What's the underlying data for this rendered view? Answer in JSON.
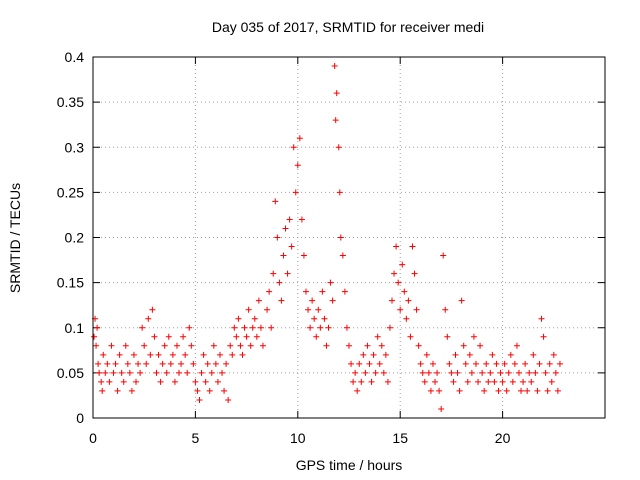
{
  "chart_data": {
    "type": "scatter",
    "title": "Day 035 of 2017, SRMTID for receiver medi",
    "xlabel": "GPS time / hours",
    "ylabel": "SRMTID / TECUs",
    "xlim": [
      0,
      25
    ],
    "ylim": [
      0,
      0.4
    ],
    "xticks": [
      0,
      5,
      10,
      15,
      20
    ],
    "xtick_labels": [
      "0",
      "5",
      "10",
      "15",
      "20"
    ],
    "yticks": [
      0,
      0.05,
      0.1,
      0.15,
      0.2,
      0.25,
      0.3,
      0.35,
      0.4
    ],
    "ytick_labels": [
      "0",
      "0.05",
      "0.1",
      "0.15",
      "0.2",
      "0.25",
      "0.3",
      "0.35",
      "0.4"
    ],
    "grid": true,
    "marker": "+",
    "color": "#ff0000",
    "series": [
      {
        "name": "SRMTID",
        "points": [
          [
            0.05,
            0.09
          ],
          [
            0.1,
            0.11
          ],
          [
            0.15,
            0.08
          ],
          [
            0.2,
            0.1
          ],
          [
            0.25,
            0.06
          ],
          [
            0.3,
            0.05
          ],
          [
            0.4,
            0.04
          ],
          [
            0.45,
            0.03
          ],
          [
            0.5,
            0.07
          ],
          [
            0.6,
            0.05
          ],
          [
            0.7,
            0.06
          ],
          [
            0.8,
            0.04
          ],
          [
            0.9,
            0.08
          ],
          [
            1.0,
            0.05
          ],
          [
            1.1,
            0.06
          ],
          [
            1.2,
            0.03
          ],
          [
            1.3,
            0.07
          ],
          [
            1.4,
            0.05
          ],
          [
            1.5,
            0.04
          ],
          [
            1.6,
            0.08
          ],
          [
            1.7,
            0.06
          ],
          [
            1.8,
            0.05
          ],
          [
            1.9,
            0.03
          ],
          [
            2.0,
            0.07
          ],
          [
            2.1,
            0.04
          ],
          [
            2.2,
            0.06
          ],
          [
            2.3,
            0.05
          ],
          [
            2.4,
            0.1
          ],
          [
            2.5,
            0.08
          ],
          [
            2.6,
            0.06
          ],
          [
            2.7,
            0.11
          ],
          [
            2.8,
            0.07
          ],
          [
            2.9,
            0.12
          ],
          [
            3.0,
            0.09
          ],
          [
            3.1,
            0.05
          ],
          [
            3.2,
            0.07
          ],
          [
            3.3,
            0.04
          ],
          [
            3.4,
            0.06
          ],
          [
            3.5,
            0.08
          ],
          [
            3.6,
            0.05
          ],
          [
            3.7,
            0.09
          ],
          [
            3.8,
            0.06
          ],
          [
            3.9,
            0.07
          ],
          [
            4.0,
            0.04
          ],
          [
            4.1,
            0.08
          ],
          [
            4.2,
            0.05
          ],
          [
            4.3,
            0.06
          ],
          [
            4.4,
            0.09
          ],
          [
            4.5,
            0.07
          ],
          [
            4.6,
            0.05
          ],
          [
            4.7,
            0.1
          ],
          [
            4.8,
            0.08
          ],
          [
            4.9,
            0.06
          ],
          [
            5.0,
            0.04
          ],
          [
            5.1,
            0.03
          ],
          [
            5.2,
            0.02
          ],
          [
            5.3,
            0.05
          ],
          [
            5.4,
            0.07
          ],
          [
            5.5,
            0.04
          ],
          [
            5.6,
            0.06
          ],
          [
            5.7,
            0.03
          ],
          [
            5.8,
            0.05
          ],
          [
            5.9,
            0.08
          ],
          [
            6.0,
            0.06
          ],
          [
            6.1,
            0.04
          ],
          [
            6.2,
            0.07
          ],
          [
            6.3,
            0.05
          ],
          [
            6.4,
            0.03
          ],
          [
            6.5,
            0.06
          ],
          [
            6.6,
            0.02
          ],
          [
            6.7,
            0.08
          ],
          [
            6.8,
            0.07
          ],
          [
            6.9,
            0.1
          ],
          [
            7.0,
            0.09
          ],
          [
            7.1,
            0.11
          ],
          [
            7.2,
            0.08
          ],
          [
            7.3,
            0.07
          ],
          [
            7.4,
            0.1
          ],
          [
            7.5,
            0.09
          ],
          [
            7.6,
            0.12
          ],
          [
            7.7,
            0.08
          ],
          [
            7.8,
            0.1
          ],
          [
            7.9,
            0.11
          ],
          [
            8.0,
            0.09
          ],
          [
            8.1,
            0.13
          ],
          [
            8.2,
            0.1
          ],
          [
            8.3,
            0.08
          ],
          [
            8.5,
            0.12
          ],
          [
            8.6,
            0.14
          ],
          [
            8.7,
            0.1
          ],
          [
            8.8,
            0.16
          ],
          [
            8.9,
            0.24
          ],
          [
            9.0,
            0.2
          ],
          [
            9.1,
            0.15
          ],
          [
            9.2,
            0.13
          ],
          [
            9.3,
            0.18
          ],
          [
            9.4,
            0.21
          ],
          [
            9.5,
            0.16
          ],
          [
            9.6,
            0.22
          ],
          [
            9.7,
            0.19
          ],
          [
            9.8,
            0.3
          ],
          [
            9.9,
            0.25
          ],
          [
            10.0,
            0.28
          ],
          [
            10.1,
            0.31
          ],
          [
            10.2,
            0.22
          ],
          [
            10.3,
            0.18
          ],
          [
            10.4,
            0.14
          ],
          [
            10.5,
            0.12
          ],
          [
            10.6,
            0.1
          ],
          [
            10.7,
            0.13
          ],
          [
            10.8,
            0.11
          ],
          [
            10.9,
            0.09
          ],
          [
            11.0,
            0.12
          ],
          [
            11.1,
            0.1
          ],
          [
            11.2,
            0.14
          ],
          [
            11.3,
            0.11
          ],
          [
            11.4,
            0.08
          ],
          [
            11.5,
            0.1
          ],
          [
            11.6,
            0.15
          ],
          [
            11.7,
            0.13
          ],
          [
            11.8,
            0.39
          ],
          [
            11.85,
            0.33
          ],
          [
            11.9,
            0.36
          ],
          [
            12.0,
            0.3
          ],
          [
            12.05,
            0.25
          ],
          [
            12.1,
            0.2
          ],
          [
            12.2,
            0.18
          ],
          [
            12.3,
            0.14
          ],
          [
            12.4,
            0.1
          ],
          [
            12.5,
            0.08
          ],
          [
            12.6,
            0.06
          ],
          [
            12.7,
            0.04
          ],
          [
            12.8,
            0.05
          ],
          [
            12.9,
            0.03
          ],
          [
            13.0,
            0.06
          ],
          [
            13.1,
            0.04
          ],
          [
            13.2,
            0.07
          ],
          [
            13.3,
            0.05
          ],
          [
            13.4,
            0.08
          ],
          [
            13.5,
            0.06
          ],
          [
            13.6,
            0.04
          ],
          [
            13.7,
            0.07
          ],
          [
            13.8,
            0.05
          ],
          [
            13.9,
            0.09
          ],
          [
            14.0,
            0.06
          ],
          [
            14.1,
            0.08
          ],
          [
            14.2,
            0.05
          ],
          [
            14.3,
            0.07
          ],
          [
            14.4,
            0.04
          ],
          [
            14.5,
            0.1
          ],
          [
            14.6,
            0.13
          ],
          [
            14.7,
            0.16
          ],
          [
            14.8,
            0.19
          ],
          [
            14.9,
            0.15
          ],
          [
            15.0,
            0.12
          ],
          [
            15.1,
            0.17
          ],
          [
            15.2,
            0.14
          ],
          [
            15.3,
            0.11
          ],
          [
            15.4,
            0.13
          ],
          [
            15.5,
            0.09
          ],
          [
            15.6,
            0.19
          ],
          [
            15.7,
            0.16
          ],
          [
            15.8,
            0.12
          ],
          [
            15.9,
            0.08
          ],
          [
            16.0,
            0.06
          ],
          [
            16.1,
            0.05
          ],
          [
            16.2,
            0.04
          ],
          [
            16.3,
            0.07
          ],
          [
            16.4,
            0.05
          ],
          [
            16.5,
            0.03
          ],
          [
            16.6,
            0.06
          ],
          [
            16.7,
            0.04
          ],
          [
            16.8,
            0.05
          ],
          [
            16.9,
            0.03
          ],
          [
            17.0,
            0.01
          ],
          [
            17.1,
            0.18
          ],
          [
            17.2,
            0.12
          ],
          [
            17.3,
            0.09
          ],
          [
            17.4,
            0.06
          ],
          [
            17.5,
            0.05
          ],
          [
            17.6,
            0.04
          ],
          [
            17.7,
            0.07
          ],
          [
            17.8,
            0.05
          ],
          [
            17.9,
            0.03
          ],
          [
            18.0,
            0.13
          ],
          [
            18.1,
            0.08
          ],
          [
            18.2,
            0.06
          ],
          [
            18.3,
            0.04
          ],
          [
            18.4,
            0.07
          ],
          [
            18.5,
            0.05
          ],
          [
            18.6,
            0.09
          ],
          [
            18.7,
            0.06
          ],
          [
            18.8,
            0.04
          ],
          [
            18.9,
            0.08
          ],
          [
            19.0,
            0.05
          ],
          [
            19.1,
            0.03
          ],
          [
            19.2,
            0.06
          ],
          [
            19.3,
            0.04
          ],
          [
            19.4,
            0.05
          ],
          [
            19.5,
            0.07
          ],
          [
            19.6,
            0.04
          ],
          [
            19.7,
            0.06
          ],
          [
            19.8,
            0.03
          ],
          [
            19.9,
            0.05
          ],
          [
            20.0,
            0.04
          ],
          [
            20.1,
            0.06
          ],
          [
            20.2,
            0.03
          ],
          [
            20.3,
            0.05
          ],
          [
            20.4,
            0.07
          ],
          [
            20.5,
            0.04
          ],
          [
            20.6,
            0.06
          ],
          [
            20.7,
            0.08
          ],
          [
            20.8,
            0.05
          ],
          [
            20.9,
            0.03
          ],
          [
            21.0,
            0.04
          ],
          [
            21.1,
            0.06
          ],
          [
            21.2,
            0.03
          ],
          [
            21.3,
            0.05
          ],
          [
            21.4,
            0.04
          ],
          [
            21.5,
            0.07
          ],
          [
            21.6,
            0.05
          ],
          [
            21.7,
            0.03
          ],
          [
            21.8,
            0.06
          ],
          [
            21.9,
            0.11
          ],
          [
            22.0,
            0.09
          ],
          [
            22.1,
            0.05
          ],
          [
            22.2,
            0.03
          ],
          [
            22.3,
            0.06
          ],
          [
            22.4,
            0.04
          ],
          [
            22.5,
            0.07
          ],
          [
            22.6,
            0.05
          ],
          [
            22.7,
            0.03
          ],
          [
            22.8,
            0.06
          ]
        ]
      }
    ]
  }
}
